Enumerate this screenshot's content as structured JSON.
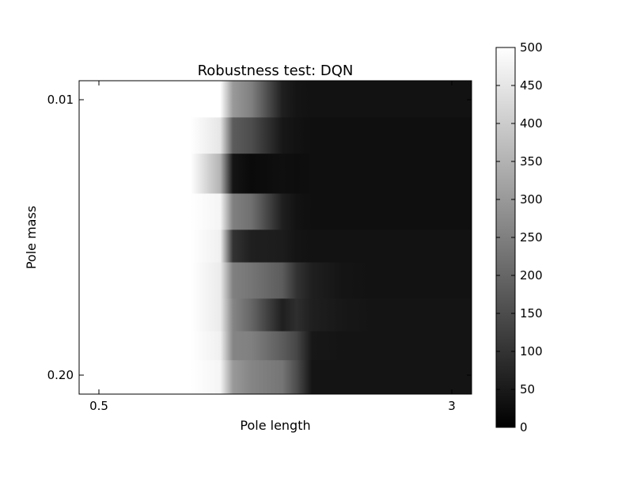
{
  "chart_data": {
    "type": "heatmap",
    "title": "Robustness test: DQN",
    "xlabel": "Pole length",
    "ylabel": "Pole mass",
    "x_tick_labels": [
      "0.5",
      "3"
    ],
    "y_tick_labels": [
      "0.01",
      "0.20"
    ],
    "x_range": [
      0.5,
      3
    ],
    "y_range": [
      0.01,
      0.2
    ],
    "y_axis_direction": "top-to-bottom increasing",
    "colormap": "gray",
    "colorbar": {
      "range": [
        0,
        500
      ],
      "ticks": [
        "0",
        "50",
        "100",
        "150",
        "200",
        "250",
        "300",
        "350",
        "400",
        "450",
        "500"
      ]
    },
    "x_samples": [
      0.5,
      0.72,
      0.93,
      1.15,
      1.36,
      1.45,
      1.58,
      1.8,
      1.9,
      2.01,
      2.23,
      2.44,
      2.66,
      2.87,
      3.0
    ],
    "rows": [
      {
        "y": 0.01,
        "values": [
          500,
          500,
          500,
          500,
          500,
          300,
          250,
          60,
          40,
          35,
          35,
          35,
          35,
          35,
          35
        ]
      },
      {
        "y": 0.035,
        "values": [
          500,
          500,
          500,
          500,
          450,
          180,
          150,
          45,
          35,
          30,
          30,
          30,
          30,
          30,
          30
        ]
      },
      {
        "y": 0.06,
        "values": [
          500,
          500,
          500,
          500,
          350,
          40,
          20,
          30,
          25,
          30,
          30,
          30,
          30,
          30,
          30
        ]
      },
      {
        "y": 0.09,
        "values": [
          500,
          500,
          500,
          500,
          480,
          250,
          220,
          60,
          35,
          30,
          30,
          30,
          30,
          30,
          30
        ]
      },
      {
        "y": 0.11,
        "values": [
          500,
          500,
          500,
          500,
          470,
          100,
          60,
          55,
          40,
          35,
          35,
          35,
          35,
          35,
          35
        ]
      },
      {
        "y": 0.135,
        "values": [
          500,
          500,
          500,
          500,
          460,
          250,
          230,
          180,
          100,
          60,
          40,
          35,
          35,
          35,
          35
        ]
      },
      {
        "y": 0.16,
        "values": [
          500,
          500,
          500,
          500,
          460,
          260,
          200,
          60,
          90,
          60,
          45,
          40,
          40,
          40,
          40
        ]
      },
      {
        "y": 0.18,
        "values": [
          500,
          500,
          500,
          500,
          470,
          260,
          250,
          180,
          140,
          45,
          40,
          40,
          40,
          40,
          40
        ]
      },
      {
        "y": 0.2,
        "values": [
          500,
          500,
          500,
          500,
          480,
          300,
          260,
          230,
          150,
          40,
          40,
          40,
          40,
          40,
          40
        ]
      }
    ]
  }
}
